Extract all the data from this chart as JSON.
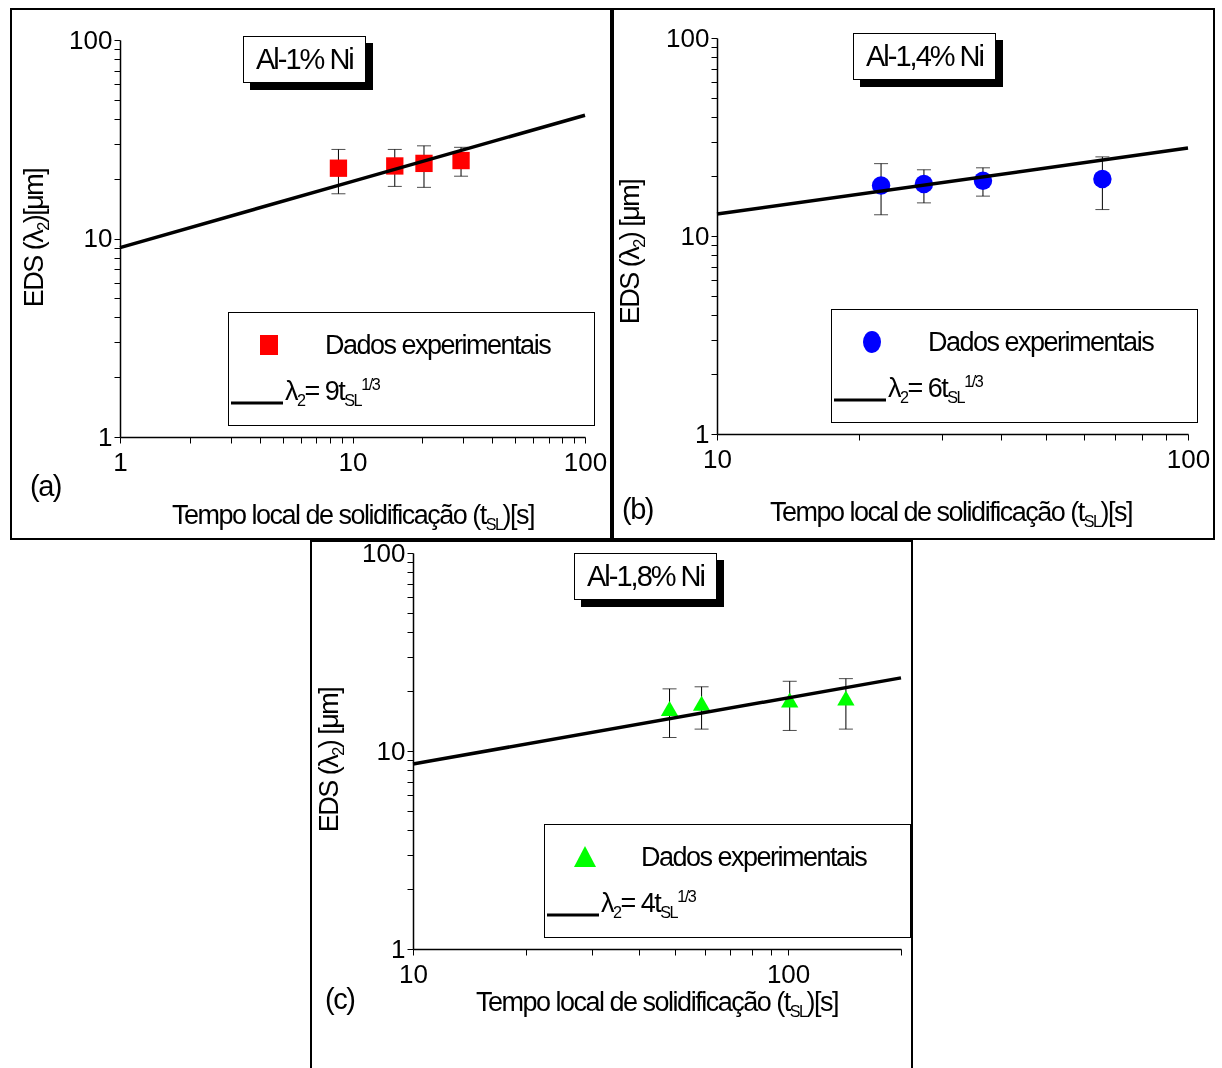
{
  "chart_data": [
    {
      "type": "scatter",
      "xlabel": "Tempo local de solidificação (t$_{SL}$)[s]",
      "ylabel": "EDS (λ$_{2}$)[μm]",
      "log": "xy",
      "grid": false,
      "legend": "bottom right",
      "xlim": [
        1,
        100
      ],
      "xticks": [
        1,
        {
          "value": 2,
          "label": null
        },
        {
          "value": 3,
          "label": null
        },
        {
          "value": 4,
          "label": null
        },
        {
          "value": 5,
          "label": null
        },
        {
          "value": 6,
          "label": null
        },
        {
          "value": 7,
          "label": null
        },
        {
          "value": 8,
          "label": null
        },
        {
          "value": 9,
          "label": null
        },
        10,
        {
          "value": 20,
          "label": null
        },
        {
          "value": 30,
          "label": null
        },
        {
          "value": 40,
          "label": null
        },
        {
          "value": 50,
          "label": null
        },
        {
          "value": 60,
          "label": null
        },
        {
          "value": 70,
          "label": null
        },
        {
          "value": 80,
          "label": null
        },
        {
          "value": 90,
          "label": null
        },
        100
      ],
      "ylim": [
        1,
        100
      ],
      "yticks": [
        1,
        {
          "value": 2,
          "label": null
        },
        {
          "value": 3,
          "label": null
        },
        {
          "value": 4,
          "label": null
        },
        {
          "value": 5,
          "label": null
        },
        {
          "value": 6,
          "label": null
        },
        {
          "value": 7,
          "label": null
        },
        {
          "value": 8,
          "label": null
        },
        {
          "value": 9,
          "label": null
        },
        10,
        {
          "value": 20,
          "label": null
        },
        {
          "value": 30,
          "label": null
        },
        {
          "value": 40,
          "label": null
        },
        {
          "value": 50,
          "label": null
        },
        {
          "value": 60,
          "label": null
        },
        {
          "value": 70,
          "label": null
        },
        {
          "value": 80,
          "label": null
        },
        {
          "value": 90,
          "label": null
        },
        100
      ],
      "annotations": [
        "Al-1% Ni",
        "(a)"
      ],
      "series": [
        {
          "name": "Dados experimentais",
          "type": "scatter",
          "marker": "square",
          "color": "#ff0000",
          "x": [
            8.7,
            15.2,
            20.3,
            29.3
          ],
          "values": [
            22.6,
            23.2,
            23.9,
            24.7
          ],
          "errors": [
            [
              16.8,
              28.1
            ],
            [
              18.3,
              28.1
            ],
            [
              18.1,
              29.3
            ],
            [
              20.6,
              28.8
            ]
          ]
        },
        {
          "name": "λ$_{2}$= 9t$_{SL}$$^{1/3}$",
          "type": "line",
          "color": "#000000",
          "x": [
            1,
            10,
            100
          ],
          "values": [
            9,
            19.4,
            41.8
          ]
        }
      ]
    },
    {
      "type": "scatter",
      "xlabel": "Tempo local de solidificação (t$_{SL}$)[s]",
      "ylabel": "EDS (λ$_{2}$) [μm]",
      "log": "xy",
      "grid": false,
      "legend": "bottom right",
      "xlim": [
        10,
        100
      ],
      "xticks": [
        10,
        {
          "value": 20,
          "label": null
        },
        {
          "value": 30,
          "label": null
        },
        {
          "value": 40,
          "label": null
        },
        {
          "value": 50,
          "label": null
        },
        {
          "value": 60,
          "label": null
        },
        {
          "value": 70,
          "label": null
        },
        {
          "value": 80,
          "label": null
        },
        {
          "value": 90,
          "label": null
        },
        100
      ],
      "ylim": [
        1,
        100
      ],
      "yticks": [
        1,
        {
          "value": 2,
          "label": null
        },
        {
          "value": 3,
          "label": null
        },
        {
          "value": 4,
          "label": null
        },
        {
          "value": 5,
          "label": null
        },
        {
          "value": 6,
          "label": null
        },
        {
          "value": 7,
          "label": null
        },
        {
          "value": 8,
          "label": null
        },
        {
          "value": 9,
          "label": null
        },
        10,
        {
          "value": 20,
          "label": null
        },
        {
          "value": 30,
          "label": null
        },
        {
          "value": 40,
          "label": null
        },
        {
          "value": 50,
          "label": null
        },
        {
          "value": 60,
          "label": null
        },
        {
          "value": 70,
          "label": null
        },
        {
          "value": 80,
          "label": null
        },
        {
          "value": 90,
          "label": null
        },
        100
      ],
      "annotations": [
        "Al-1,4% Ni",
        "(b)"
      ],
      "series": [
        {
          "name": "Dados experimentais",
          "type": "scatter",
          "marker": "circle",
          "color": "#0000ff",
          "x": [
            22.3,
            27.5,
            36.7,
            65.8
          ],
          "values": [
            18.0,
            18.3,
            19.0,
            19.4
          ],
          "errors": [
            [
              12.8,
              23.2
            ],
            [
              14.7,
              21.6
            ],
            [
              15.9,
              22.1
            ],
            [
              13.6,
              25.1
            ]
          ]
        },
        {
          "name": "λ$_{2}$= 6t$_{SL}$$^{1/3}$",
          "type": "line",
          "color": "#000000",
          "x": [
            10,
            100
          ],
          "values": [
            12.9,
            27.8
          ]
        }
      ]
    },
    {
      "type": "scatter",
      "xlabel": "Tempo local de solidificação (t$_{SL}$)[s]",
      "ylabel": "EDS (λ$_{2}$) [μm]",
      "log": "xy",
      "grid": false,
      "legend": "bottom right",
      "xlim": [
        10,
        200
      ],
      "xticks": [
        10,
        {
          "value": 20,
          "label": null
        },
        {
          "value": 30,
          "label": null
        },
        {
          "value": 40,
          "label": null
        },
        {
          "value": 50,
          "label": null
        },
        {
          "value": 60,
          "label": null
        },
        {
          "value": 70,
          "label": null
        },
        {
          "value": 80,
          "label": null
        },
        {
          "value": 90,
          "label": null
        },
        100,
        {
          "value": 200,
          "label": null
        }
      ],
      "ylim": [
        1,
        100
      ],
      "yticks": [
        1,
        {
          "value": 2,
          "label": null
        },
        {
          "value": 3,
          "label": null
        },
        {
          "value": 4,
          "label": null
        },
        {
          "value": 5,
          "label": null
        },
        {
          "value": 6,
          "label": null
        },
        {
          "value": 7,
          "label": null
        },
        {
          "value": 8,
          "label": null
        },
        {
          "value": 9,
          "label": null
        },
        10,
        {
          "value": 20,
          "label": null
        },
        {
          "value": 30,
          "label": null
        },
        {
          "value": 40,
          "label": null
        },
        {
          "value": 50,
          "label": null
        },
        {
          "value": 60,
          "label": null
        },
        {
          "value": 70,
          "label": null
        },
        {
          "value": 80,
          "label": null
        },
        {
          "value": 90,
          "label": null
        },
        100
      ],
      "annotations": [
        "Al-1,8% Ni",
        "(c)"
      ],
      "series": [
        {
          "name": "Dados experimentais",
          "type": "scatter",
          "marker": "triangle",
          "color": "#00ff00",
          "x": [
            48.3,
            58.8,
            101,
            142.6
          ],
          "values": [
            16.4,
            17.4,
            18.1,
            18.5
          ],
          "errors": [
            [
              11.7,
              20.6
            ],
            [
              12.9,
              21.1
            ],
            [
              12.7,
              22.5
            ],
            [
              12.9,
              23.2
            ]
          ]
        },
        {
          "name": "λ$_{2}$= 4t$_{SL}$$^{1/3}$",
          "type": "line",
          "color": "#000000",
          "x": [
            10,
            200
          ],
          "values": [
            8.6,
            23.4
          ]
        }
      ]
    }
  ]
}
